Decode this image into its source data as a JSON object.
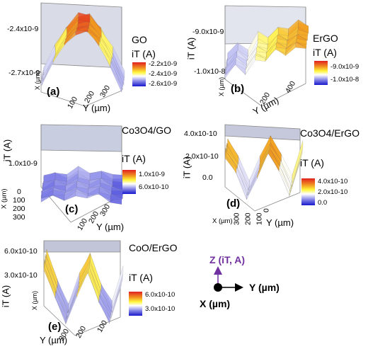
{
  "colors": {
    "high": "#e02020",
    "mid_high": "#f2a020",
    "mid": "#fff45a",
    "neutral": "#ffffff",
    "low": "#2a2ad8",
    "axis_arrow_z": "#7030a0",
    "axis_arrow_y": "#000000"
  },
  "chart_data": [
    {
      "panel": "(a)",
      "type": "surface",
      "title": "GO",
      "colorbar_label": "iT (A)",
      "zlabel": "iT (A)",
      "xlabel": "X (µm)",
      "ylabel": "Y (µm)",
      "z_ticks": [
        "-2.4x10-9",
        "-2.7x10-9"
      ],
      "y_ticks": [
        "100",
        "200",
        "300"
      ],
      "colorbar_ticks": [
        "-2.2x10-9",
        "-2.4x10-9",
        "-2.6x10-9"
      ],
      "zlim": [
        -2.7e-09,
        -2.2e-09
      ],
      "surface_profile": {
        "y": [
          0,
          50,
          100,
          150,
          200,
          250,
          300,
          350
        ],
        "iT": [
          -2.62e-09,
          -2.45e-09,
          -2.32e-09,
          -2.24e-09,
          -2.24e-09,
          -2.33e-09,
          -2.47e-09,
          -2.65e-09
        ]
      }
    },
    {
      "panel": "(b)",
      "type": "surface",
      "title": "ErGO",
      "colorbar_label": "iT (A)",
      "zlabel": "iT (A)",
      "xlabel": "X (µm)",
      "ylabel": "Y (µm)",
      "z_ticks": [
        "-9.0x10-9",
        "-1.0x10-8"
      ],
      "y_ticks": [
        "200",
        "400"
      ],
      "colorbar_ticks": [
        "-9.0x10-9",
        "-1.0x10-8"
      ],
      "zlim": [
        -1e-08,
        -8.8e-09
      ],
      "surface_profile": {
        "y": [
          0,
          60,
          120,
          180,
          240,
          300,
          360,
          420,
          480
        ],
        "iT": [
          -9.8e-09,
          -9.5e-09,
          -9.7e-09,
          -9.3e-09,
          -9.4e-09,
          -9.1e-09,
          -9.2e-09,
          -9e-09,
          -9.1e-09
        ]
      }
    },
    {
      "panel": "(c)",
      "type": "surface",
      "title": "Co3O4/GO",
      "colorbar_label": "iT (A)",
      "zlabel": "iT (A)",
      "xlabel": "X (µm)",
      "ylabel": "Y (µm)",
      "z_ticks": [
        "1.0x10-9"
      ],
      "x_ticks": [
        "0",
        "100",
        "200",
        "300"
      ],
      "y_ticks": [
        "100",
        "200",
        "300"
      ],
      "colorbar_ticks": [
        "1.0x10-9",
        "6.0x10-10"
      ],
      "zlim": [
        6e-10,
        1.1e-09
      ],
      "surface_profile": {
        "y": [
          0,
          50,
          100,
          150,
          200,
          250,
          300,
          350
        ],
        "iT": [
          6.6e-10,
          7.1e-10,
          6.8e-10,
          7.4e-10,
          6.9e-10,
          7.3e-10,
          6.7e-10,
          6.5e-10
        ]
      }
    },
    {
      "panel": "(d)",
      "type": "surface",
      "title": "Co3O4/ErGO",
      "colorbar_label": "iT (A)",
      "zlabel": "iT (A)",
      "xlabel": "X (µm)",
      "ylabel": "Y (µm)",
      "z_ticks": [
        "4.0x10-10",
        "2.0x10-10",
        "0.0"
      ],
      "y_ticks": [
        "300",
        "200",
        "100",
        "0"
      ],
      "colorbar_ticks": [
        "4.0x10-10",
        "2.0x10-10",
        "0.0"
      ],
      "zlim": [
        0.0,
        4e-10
      ],
      "surface_profile": {
        "y": [
          0,
          50,
          100,
          150,
          200,
          250,
          300,
          350
        ],
        "iT": [
          3.6e-10,
          2.4e-10,
          5e-11,
          2.2e-10,
          3.9e-10,
          2.6e-10,
          8e-11,
          3.4e-10
        ]
      }
    },
    {
      "panel": "(e)",
      "type": "surface",
      "title": "CoO/ErGO",
      "colorbar_label": "iT (A)",
      "zlabel": "iT (A)",
      "xlabel": "X (µm)",
      "ylabel": "Y (µm)",
      "z_ticks": [
        "6.0x10-10",
        "3.0x10-10"
      ],
      "y_ticks": [
        "300",
        "200",
        "100"
      ],
      "colorbar_ticks": [
        "6.0x10-10",
        "3.0x10-10"
      ],
      "zlim": [
        3e-10,
        6.5e-10
      ],
      "surface_profile": {
        "y": [
          0,
          50,
          100,
          150,
          200,
          250,
          300,
          350
        ],
        "iT": [
          6.2e-10,
          4.6e-10,
          3.2e-10,
          4.8e-10,
          6e-10,
          4.4e-10,
          3.3e-10,
          5.2e-10
        ]
      }
    }
  ],
  "axis_legend": {
    "z": "Z (iT, A)",
    "y": "Y (µm)",
    "x": "X (µm)"
  }
}
